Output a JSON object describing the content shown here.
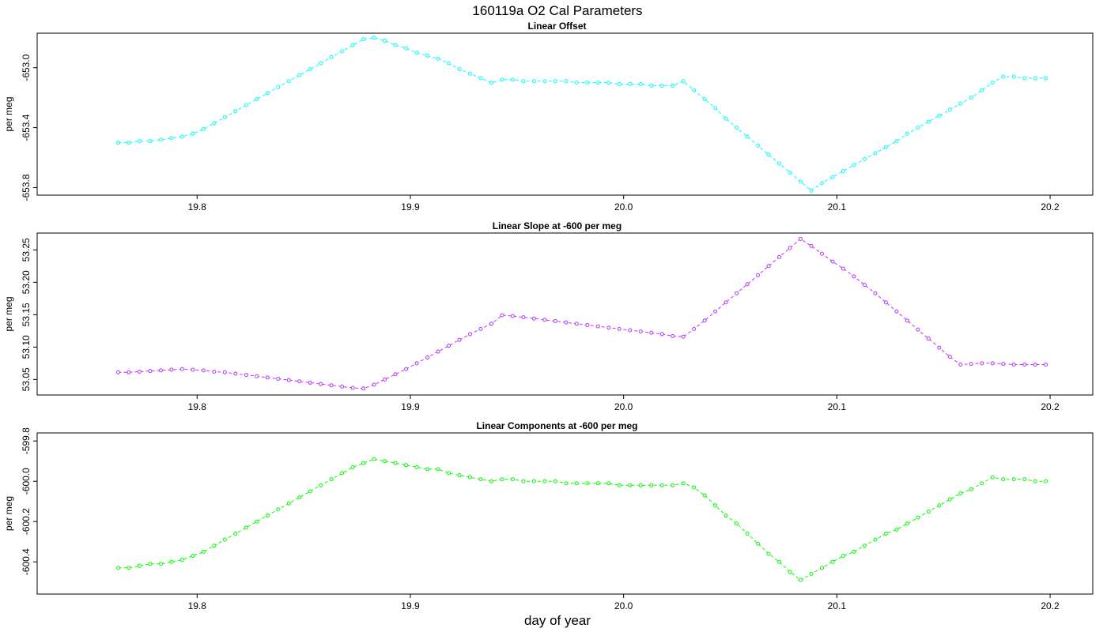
{
  "figure": {
    "title": "160119a   O2 Cal Parameters",
    "xlabel": "day of year"
  },
  "chart_data": [
    {
      "type": "line",
      "title": "Linear Offset",
      "ylabel": "per meg",
      "color": "#00ffff",
      "line_style": "dashed",
      "marker": "open-circle",
      "xlim": [
        19.725,
        20.22
      ],
      "ylim": [
        -653.85,
        -652.77
      ],
      "xticks": [
        19.8,
        19.9,
        20.0,
        20.1,
        20.2
      ],
      "xtick_labels": [
        "19.8",
        "19.9",
        "20.0",
        "20.1",
        "20.2"
      ],
      "yticks": [
        -653.0,
        -653.4,
        -653.8
      ],
      "ytick_labels": [
        "-653.0",
        "-653.4",
        "-653.8"
      ],
      "x": [
        19.763,
        19.768,
        19.773,
        19.778,
        19.783,
        19.788,
        19.793,
        19.798,
        19.803,
        19.808,
        19.813,
        19.818,
        19.823,
        19.828,
        19.833,
        19.838,
        19.843,
        19.848,
        19.853,
        19.858,
        19.863,
        19.868,
        19.873,
        19.878,
        19.883,
        19.888,
        19.893,
        19.898,
        19.903,
        19.908,
        19.913,
        19.918,
        19.923,
        19.928,
        19.933,
        19.938,
        19.943,
        19.948,
        19.953,
        19.958,
        19.963,
        19.968,
        19.973,
        19.978,
        19.983,
        19.988,
        19.993,
        19.998,
        20.003,
        20.008,
        20.013,
        20.018,
        20.023,
        20.028,
        20.033,
        20.038,
        20.043,
        20.048,
        20.053,
        20.058,
        20.063,
        20.068,
        20.073,
        20.078,
        20.083,
        20.088,
        20.093,
        20.098,
        20.103,
        20.108,
        20.113,
        20.118,
        20.123,
        20.128,
        20.133,
        20.138,
        20.143,
        20.148,
        20.153,
        20.158,
        20.163,
        20.168,
        20.173,
        20.178,
        20.183,
        20.188,
        20.193,
        20.198
      ],
      "y": [
        -653.5,
        -653.5,
        -653.49,
        -653.49,
        -653.48,
        -653.47,
        -653.46,
        -653.44,
        -653.41,
        -653.37,
        -653.33,
        -653.29,
        -653.25,
        -653.21,
        -653.17,
        -653.13,
        -653.09,
        -653.05,
        -653.01,
        -652.97,
        -652.93,
        -652.89,
        -652.85,
        -652.81,
        -652.8,
        -652.82,
        -652.85,
        -652.87,
        -652.9,
        -652.92,
        -652.94,
        -652.97,
        -653.01,
        -653.04,
        -653.07,
        -653.1,
        -653.08,
        -653.08,
        -653.09,
        -653.09,
        -653.09,
        -653.09,
        -653.09,
        -653.1,
        -653.1,
        -653.1,
        -653.1,
        -653.11,
        -653.11,
        -653.11,
        -653.12,
        -653.12,
        -653.12,
        -653.09,
        -653.15,
        -653.21,
        -653.27,
        -653.34,
        -653.4,
        -653.46,
        -653.52,
        -653.58,
        -653.64,
        -653.7,
        -653.76,
        -653.82,
        -653.77,
        -653.73,
        -653.69,
        -653.65,
        -653.61,
        -653.57,
        -653.53,
        -653.49,
        -653.44,
        -653.4,
        -653.36,
        -653.32,
        -653.28,
        -653.24,
        -653.2,
        -653.15,
        -653.1,
        -653.06,
        -653.06,
        -653.07,
        -653.07,
        -653.07
      ]
    },
    {
      "type": "line",
      "title": "Linear Slope at -600 per meg",
      "ylabel": "per meg",
      "color": "#bb33ff",
      "line_style": "dashed",
      "marker": "open-circle",
      "xlim": [
        19.725,
        20.22
      ],
      "ylim": [
        53.026,
        53.276
      ],
      "xticks": [
        19.8,
        19.9,
        20.0,
        20.1,
        20.2
      ],
      "xtick_labels": [
        "19.8",
        "19.9",
        "20.0",
        "20.1",
        "20.2"
      ],
      "yticks": [
        53.05,
        53.1,
        53.15,
        53.2,
        53.25
      ],
      "ytick_labels": [
        "53.05",
        "53.10",
        "53.15",
        "53.20",
        "53.25"
      ],
      "x": [
        19.763,
        19.768,
        19.773,
        19.778,
        19.783,
        19.788,
        19.793,
        19.798,
        19.803,
        19.808,
        19.813,
        19.818,
        19.823,
        19.828,
        19.833,
        19.838,
        19.843,
        19.848,
        19.853,
        19.858,
        19.863,
        19.868,
        19.873,
        19.878,
        19.883,
        19.888,
        19.893,
        19.898,
        19.903,
        19.908,
        19.913,
        19.918,
        19.923,
        19.928,
        19.933,
        19.938,
        19.943,
        19.948,
        19.953,
        19.958,
        19.963,
        19.968,
        19.973,
        19.978,
        19.983,
        19.988,
        19.993,
        19.998,
        20.003,
        20.008,
        20.013,
        20.018,
        20.023,
        20.028,
        20.033,
        20.038,
        20.043,
        20.048,
        20.053,
        20.058,
        20.063,
        20.068,
        20.073,
        20.078,
        20.083,
        20.088,
        20.093,
        20.098,
        20.103,
        20.108,
        20.113,
        20.118,
        20.123,
        20.128,
        20.133,
        20.138,
        20.143,
        20.148,
        20.153,
        20.158,
        20.163,
        20.168,
        20.173,
        20.178,
        20.183,
        20.188,
        20.193,
        20.198
      ],
      "y": [
        53.061,
        53.061,
        53.062,
        53.063,
        53.064,
        53.065,
        53.066,
        53.065,
        53.064,
        53.062,
        53.061,
        53.059,
        53.057,
        53.055,
        53.053,
        53.051,
        53.049,
        53.047,
        53.045,
        53.043,
        53.041,
        53.039,
        53.037,
        53.036,
        53.042,
        53.05,
        53.058,
        53.066,
        53.075,
        53.084,
        53.093,
        53.102,
        53.111,
        53.12,
        53.128,
        53.136,
        53.149,
        53.148,
        53.146,
        53.144,
        53.142,
        53.14,
        53.138,
        53.136,
        53.134,
        53.132,
        53.13,
        53.128,
        53.126,
        53.124,
        53.122,
        53.12,
        53.117,
        53.116,
        53.128,
        53.141,
        53.155,
        53.169,
        53.183,
        53.197,
        53.211,
        53.225,
        53.239,
        53.253,
        53.267,
        53.256,
        53.244,
        53.232,
        53.221,
        53.209,
        53.196,
        53.183,
        53.169,
        53.155,
        53.141,
        53.127,
        53.113,
        53.099,
        53.085,
        53.073,
        53.074,
        53.075,
        53.075,
        53.074,
        53.073,
        53.073,
        53.073,
        53.073
      ]
    },
    {
      "type": "line",
      "title": "Linear Components at -600 per meg",
      "ylabel": "per meg",
      "color": "#00ff00",
      "line_style": "dashed",
      "marker": "open-circle",
      "xlim": [
        19.725,
        20.22
      ],
      "ylim": [
        -600.56,
        -599.76
      ],
      "xticks": [
        19.8,
        19.9,
        20.0,
        20.1,
        20.2
      ],
      "xtick_labels": [
        "19.8",
        "19.9",
        "20.0",
        "20.1",
        "20.2"
      ],
      "yticks": [
        -599.8,
        -600.0,
        -600.2,
        -600.4
      ],
      "ytick_labels": [
        "-599.8",
        "-600.0",
        "-600.2",
        "-600.4"
      ],
      "x": [
        19.763,
        19.768,
        19.773,
        19.778,
        19.783,
        19.788,
        19.793,
        19.798,
        19.803,
        19.808,
        19.813,
        19.818,
        19.823,
        19.828,
        19.833,
        19.838,
        19.843,
        19.848,
        19.853,
        19.858,
        19.863,
        19.868,
        19.873,
        19.878,
        19.883,
        19.888,
        19.893,
        19.898,
        19.903,
        19.908,
        19.913,
        19.918,
        19.923,
        19.928,
        19.933,
        19.938,
        19.943,
        19.948,
        19.953,
        19.958,
        19.963,
        19.968,
        19.973,
        19.978,
        19.983,
        19.988,
        19.993,
        19.998,
        20.003,
        20.008,
        20.013,
        20.018,
        20.023,
        20.028,
        20.033,
        20.038,
        20.043,
        20.048,
        20.053,
        20.058,
        20.063,
        20.068,
        20.073,
        20.078,
        20.083,
        20.088,
        20.093,
        20.098,
        20.103,
        20.108,
        20.113,
        20.118,
        20.123,
        20.128,
        20.133,
        20.138,
        20.143,
        20.148,
        20.153,
        20.158,
        20.163,
        20.168,
        20.173,
        20.178,
        20.183,
        20.188,
        20.193,
        20.198
      ],
      "y": [
        -600.43,
        -600.43,
        -600.42,
        -600.41,
        -600.41,
        -600.4,
        -600.39,
        -600.37,
        -600.35,
        -600.32,
        -600.29,
        -600.26,
        -600.23,
        -600.2,
        -600.17,
        -600.14,
        -600.11,
        -600.08,
        -600.05,
        -600.02,
        -599.99,
        -599.96,
        -599.93,
        -599.91,
        -599.89,
        -599.9,
        -599.91,
        -599.92,
        -599.93,
        -599.94,
        -599.94,
        -599.96,
        -599.97,
        -599.98,
        -599.99,
        -600.0,
        -599.99,
        -599.99,
        -600.0,
        -600.0,
        -600.0,
        -600.0,
        -600.01,
        -600.01,
        -600.01,
        -600.01,
        -600.01,
        -600.02,
        -600.02,
        -600.02,
        -600.02,
        -600.02,
        -600.02,
        -600.01,
        -600.03,
        -600.07,
        -600.12,
        -600.17,
        -600.21,
        -600.26,
        -600.31,
        -600.36,
        -600.4,
        -600.45,
        -600.49,
        -600.46,
        -600.43,
        -600.4,
        -600.37,
        -600.35,
        -600.32,
        -600.29,
        -600.26,
        -600.24,
        -600.21,
        -600.18,
        -600.15,
        -600.12,
        -600.09,
        -600.06,
        -600.04,
        -600.01,
        -599.98,
        -599.99,
        -599.99,
        -599.99,
        -600.0,
        -600.0
      ]
    }
  ]
}
